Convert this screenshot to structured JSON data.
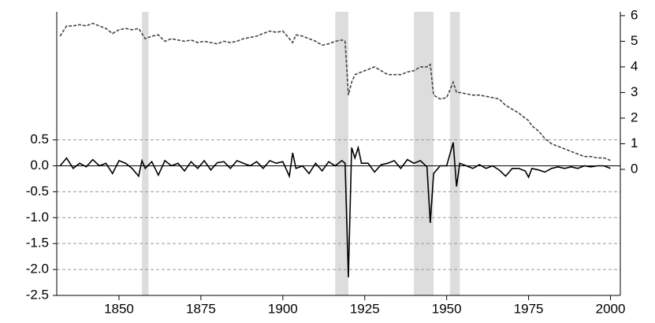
{
  "chart_data": {
    "type": "line",
    "x": [
      1832,
      1834,
      1836,
      1838,
      1840,
      1842,
      1844,
      1846,
      1848,
      1850,
      1852,
      1854,
      1856,
      1857,
      1858,
      1860,
      1862,
      1864,
      1866,
      1868,
      1870,
      1872,
      1874,
      1876,
      1878,
      1880,
      1882,
      1884,
      1886,
      1888,
      1890,
      1892,
      1894,
      1896,
      1898,
      1900,
      1902,
      1903,
      1904,
      1906,
      1908,
      1910,
      1912,
      1914,
      1916,
      1918,
      1919,
      1920,
      1921,
      1922,
      1923,
      1924,
      1926,
      1928,
      1930,
      1932,
      1934,
      1936,
      1938,
      1940,
      1942,
      1944,
      1945,
      1946,
      1948,
      1950,
      1952,
      1953,
      1954,
      1956,
      1958,
      1960,
      1962,
      1964,
      1966,
      1968,
      1970,
      1972,
      1974,
      1975,
      1976,
      1978,
      1980,
      1982,
      1984,
      1986,
      1988,
      1990,
      1992,
      1994,
      1996,
      1998,
      2000
    ],
    "series": [
      {
        "color": "#000000",
        "dash": false,
        "values": [
          0.0,
          0.15,
          -0.05,
          0.05,
          -0.02,
          0.12,
          0.0,
          0.05,
          -0.15,
          0.1,
          0.05,
          -0.05,
          -0.2,
          0.1,
          -0.05,
          0.08,
          -0.18,
          0.1,
          0.0,
          0.05,
          -0.1,
          0.08,
          -0.05,
          0.1,
          -0.08,
          0.06,
          0.08,
          -0.05,
          0.1,
          0.05,
          0.0,
          0.08,
          -0.05,
          0.1,
          0.05,
          0.08,
          -0.2,
          0.25,
          -0.05,
          0.0,
          -0.15,
          0.05,
          -0.1,
          0.08,
          0.0,
          0.1,
          0.05,
          -2.15,
          0.35,
          0.15,
          0.35,
          0.05,
          0.05,
          -0.12,
          0.02,
          0.05,
          0.1,
          -0.05,
          0.12,
          0.05,
          0.1,
          -0.02,
          -1.1,
          -0.15,
          0.0,
          0.0,
          0.45,
          -0.4,
          0.05,
          0.0,
          -0.05,
          0.02,
          -0.05,
          0.0,
          -0.08,
          -0.2,
          -0.05,
          -0.05,
          -0.1,
          -0.22,
          -0.05,
          -0.08,
          -0.12,
          -0.05,
          -0.02,
          -0.05,
          -0.02,
          -0.05,
          0.0,
          -0.02,
          0.0,
          0.0,
          -0.05
        ]
      },
      {
        "color": "#444444",
        "dash": true,
        "axis": "y2",
        "values": [
          5.2,
          5.6,
          5.6,
          5.65,
          5.6,
          5.7,
          5.6,
          5.5,
          5.3,
          5.45,
          5.5,
          5.45,
          5.5,
          5.3,
          5.1,
          5.2,
          5.25,
          5.0,
          5.1,
          5.05,
          5.0,
          5.05,
          4.95,
          5.0,
          4.95,
          4.9,
          5.0,
          4.95,
          5.0,
          5.1,
          5.15,
          5.2,
          5.3,
          5.4,
          5.35,
          5.4,
          5.1,
          4.95,
          5.25,
          5.2,
          5.1,
          5.0,
          4.85,
          4.9,
          5.0,
          5.05,
          5.0,
          2.9,
          3.4,
          3.7,
          3.75,
          3.8,
          3.9,
          4.0,
          3.85,
          3.7,
          3.7,
          3.7,
          3.8,
          3.85,
          4.0,
          4.0,
          4.1,
          2.9,
          2.75,
          2.8,
          3.4,
          3.0,
          3.0,
          2.95,
          2.9,
          2.9,
          2.85,
          2.8,
          2.75,
          2.5,
          2.35,
          2.2,
          2.0,
          1.9,
          1.7,
          1.5,
          1.2,
          1.0,
          0.9,
          0.8,
          0.7,
          0.6,
          0.5,
          0.5,
          0.45,
          0.45,
          0.35
        ]
      }
    ],
    "shaded_periods": [
      [
        1857,
        1859
      ],
      [
        1916,
        1920
      ],
      [
        1940,
        1946
      ],
      [
        1951,
        1954
      ]
    ],
    "shade_color": "#dddddd",
    "xlim": [
      1831,
      2003
    ],
    "xticks": [
      1850,
      1875,
      1900,
      1925,
      1950,
      1975,
      2000
    ],
    "ylim": [
      -2.5,
      2.97
    ],
    "yticks": [
      0.5,
      {
        "value": 0,
        "label": "0.0"
      },
      -0.5,
      {
        "value": -1,
        "label": "-1.0"
      },
      -1.5,
      {
        "value": -2,
        "label": "-2.0"
      },
      -2.5
    ],
    "y2lim": [
      -4.92,
      6.15
    ],
    "y2ticks": [
      0,
      1,
      2,
      3,
      4,
      5,
      6
    ],
    "grid": true
  }
}
